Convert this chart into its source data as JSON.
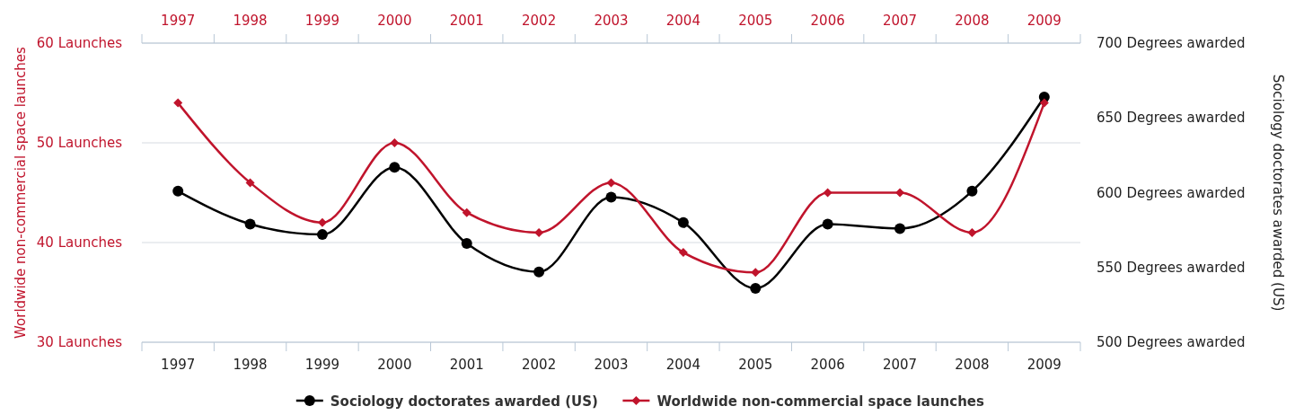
{
  "chart_data": {
    "type": "line",
    "xlabel": null,
    "ylabel": "Worldwide non-commercial space launches",
    "y2label": "Sociology doctorates awarded (US)",
    "categories": [
      "1997",
      "1998",
      "1999",
      "2000",
      "2001",
      "2002",
      "2003",
      "2004",
      "2005",
      "2006",
      "2007",
      "2008",
      "2009"
    ],
    "series": [
      {
        "name": "Sociology doctorates awarded (US)",
        "color": "#000000",
        "axis": "y2",
        "marker": "circle",
        "values": [
          601,
          579,
          572,
          617,
          566,
          547,
          597,
          580,
          536,
          579,
          576,
          601,
          664
        ]
      },
      {
        "name": "Worldwide non-commercial space launches",
        "color": "#c0142c",
        "axis": "y",
        "marker": "diamond",
        "values": [
          54,
          46,
          42,
          50,
          43,
          41,
          46,
          39,
          37,
          45,
          45,
          41,
          54
        ]
      }
    ],
    "ylim": [
      30,
      60
    ],
    "yticks": [
      {
        "value": 30,
        "label": "30 Launches"
      },
      {
        "value": 40,
        "label": "40 Launches"
      },
      {
        "value": 50,
        "label": "50 Launches"
      },
      {
        "value": 60,
        "label": "60 Launches"
      }
    ],
    "y2lim": [
      500,
      700
    ],
    "y2ticks": [
      {
        "value": 500,
        "label": "500 Degrees awarded"
      },
      {
        "value": 550,
        "label": "550 Degrees awarded"
      },
      {
        "value": 600,
        "label": "600 Degrees awarded"
      },
      {
        "value": 650,
        "label": "650 Degrees awarded"
      },
      {
        "value": 700,
        "label": "700 Degrees awarded"
      }
    ],
    "grid": "y",
    "legend": "bottom"
  }
}
